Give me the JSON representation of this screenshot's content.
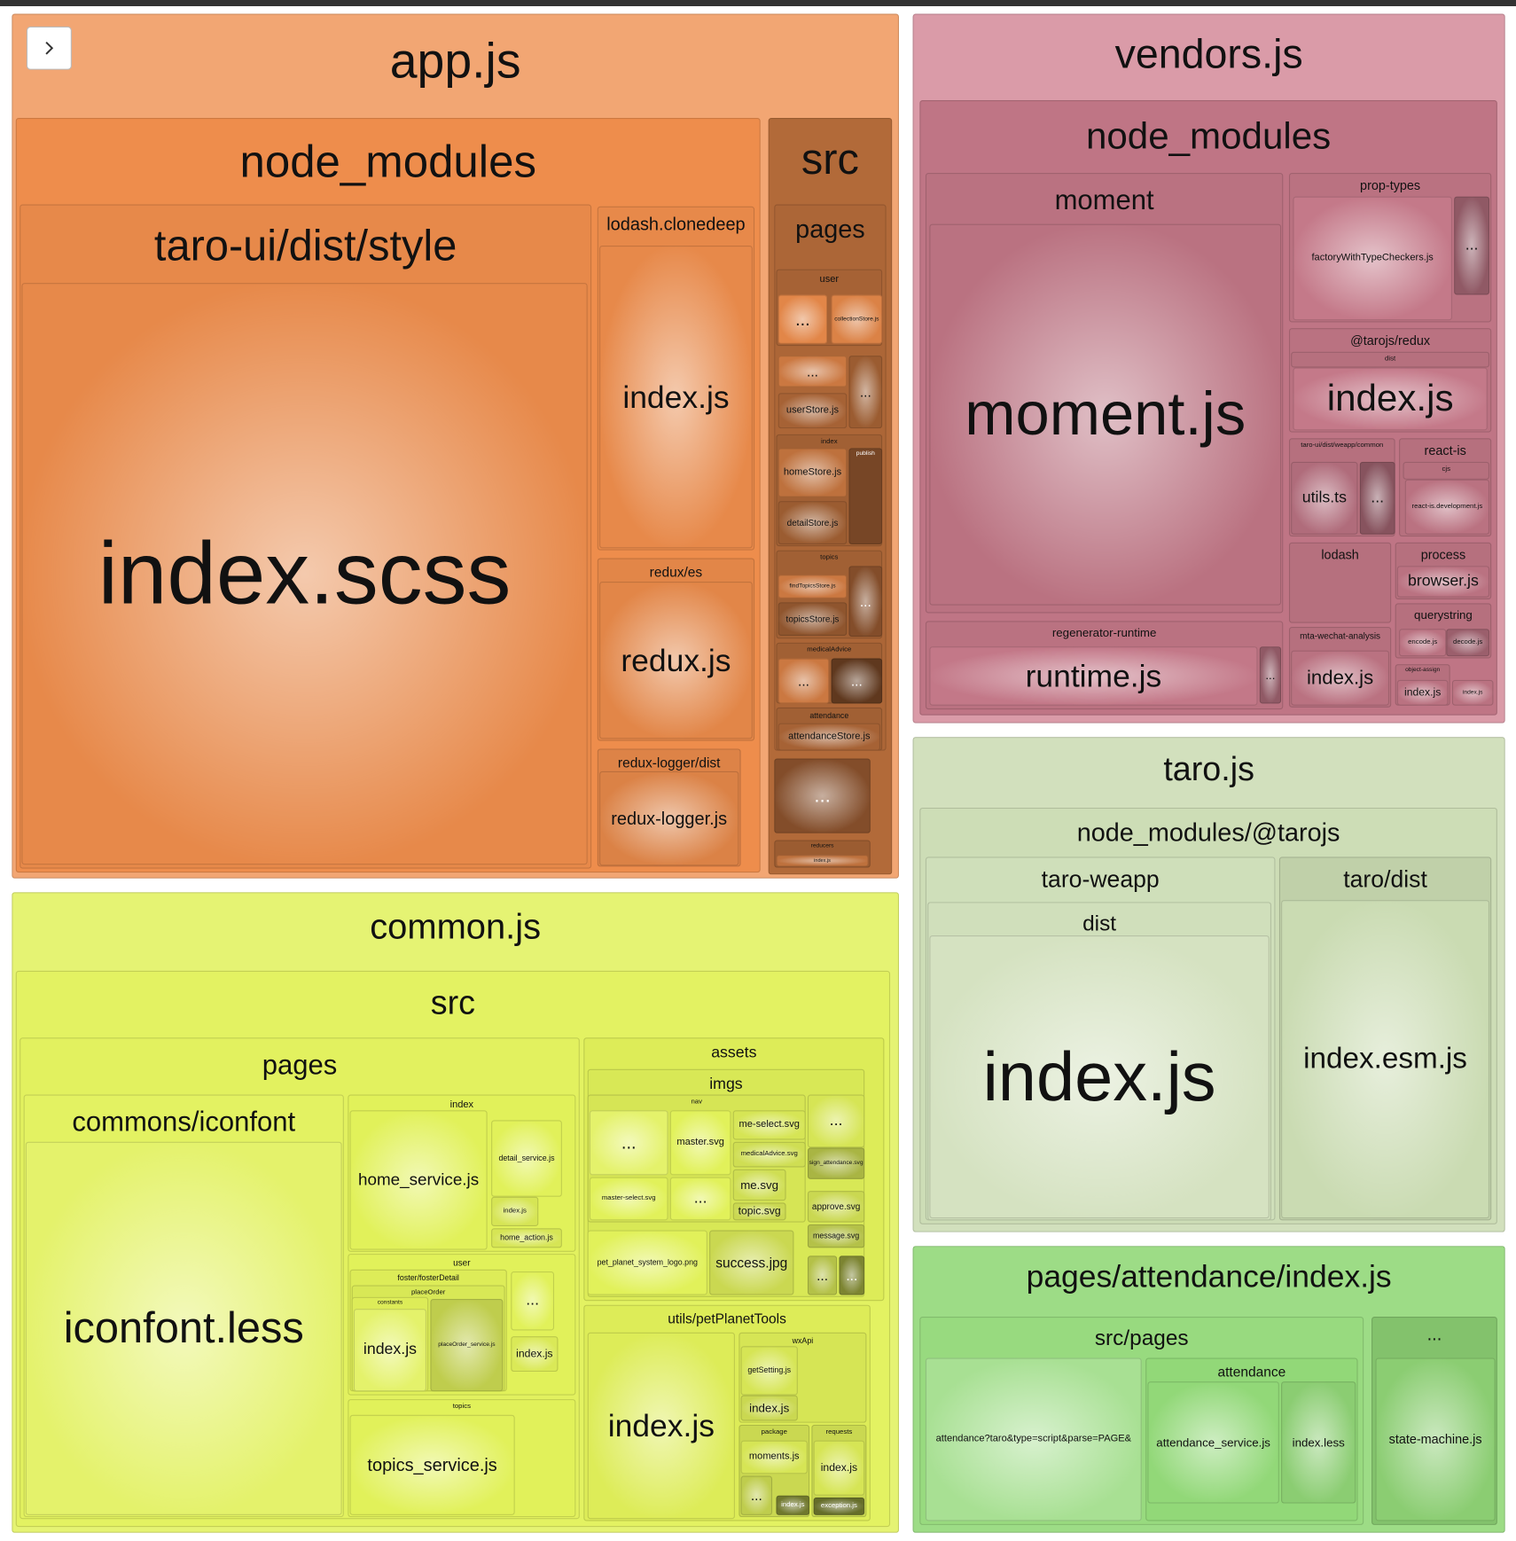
{
  "chunks": [
    {
      "name": "app.js",
      "nodes": [
        "node_modules",
        "taro-ui/dist/style",
        "index.scss",
        "lodash.clonedeep",
        "index.js",
        "redux/es",
        "redux.js",
        "redux-logger/dist",
        "redux-logger.js",
        "src",
        "pages",
        "user",
        "...",
        "collectionStore.js",
        "...",
        "userStore.js",
        "...",
        "index",
        "homeStore.js",
        "detailStore.js",
        "publish",
        "topics",
        "findTopicsStore.js",
        "topicsStore.js",
        "...",
        "medicalAdvice",
        "...",
        "...",
        "attendance",
        "attendanceStore.js",
        "...",
        "reducers",
        "index.js"
      ]
    },
    {
      "name": "vendors.js",
      "nodes": [
        "node_modules",
        "moment",
        "moment.js",
        "prop-types",
        "factoryWithTypeCheckers.js",
        "...",
        "@tarojs/redux",
        "dist",
        "index.js",
        "taro-ui/dist/weapp/common",
        "utils.ts",
        "...",
        "react-is",
        "cjs",
        "react-is.development.js",
        "lodash",
        "process",
        "browser.js",
        "querystring",
        "encode.js",
        "decode.js",
        "mta-wechat-analysis",
        "index.js",
        "object-assign",
        "index.js",
        "index.js",
        "regenerator-runtime",
        "runtime.js",
        "..."
      ]
    },
    {
      "name": "common.js",
      "nodes": [
        "src",
        "pages",
        "commons/iconfont",
        "iconfont.less",
        "index",
        "home_service.js",
        "detail_service.js",
        "index.js",
        "home_action.js",
        "user",
        "foster/fosterDetail",
        "placeOrder",
        "constants",
        "index.js",
        "placeOrder_service.js",
        "...",
        "index.js",
        "topics",
        "topics_service.js",
        "assets",
        "imgs",
        "nav",
        "...",
        "master.svg",
        "master-select.svg",
        "...",
        "me-select.svg",
        "medicalAdvice.svg",
        "me.svg",
        "topic.svg",
        "...",
        "sign_attendance.svg",
        "approve.svg",
        "message.svg",
        "pet_planet_system_logo.png",
        "success.jpg",
        "...",
        "...",
        "utils/petPlanetTools",
        "index.js",
        "wxApi",
        "getSetting.js",
        "index.js",
        "package",
        "moments.js",
        "...",
        "index.js",
        "requests",
        "index.js",
        "exception.js"
      ]
    },
    {
      "name": "taro.js",
      "nodes": [
        "node_modules/@tarojs",
        "taro-weapp",
        "dist",
        "index.js",
        "taro/dist",
        "index.esm.js"
      ]
    },
    {
      "name": "pages/attendance/index.js",
      "nodes": [
        "src/pages",
        "attendance?taro&type=script&parse=PAGE&",
        "attendance",
        "attendance_service.js",
        "index.less",
        "...",
        "state-machine.js"
      ]
    }
  ]
}
